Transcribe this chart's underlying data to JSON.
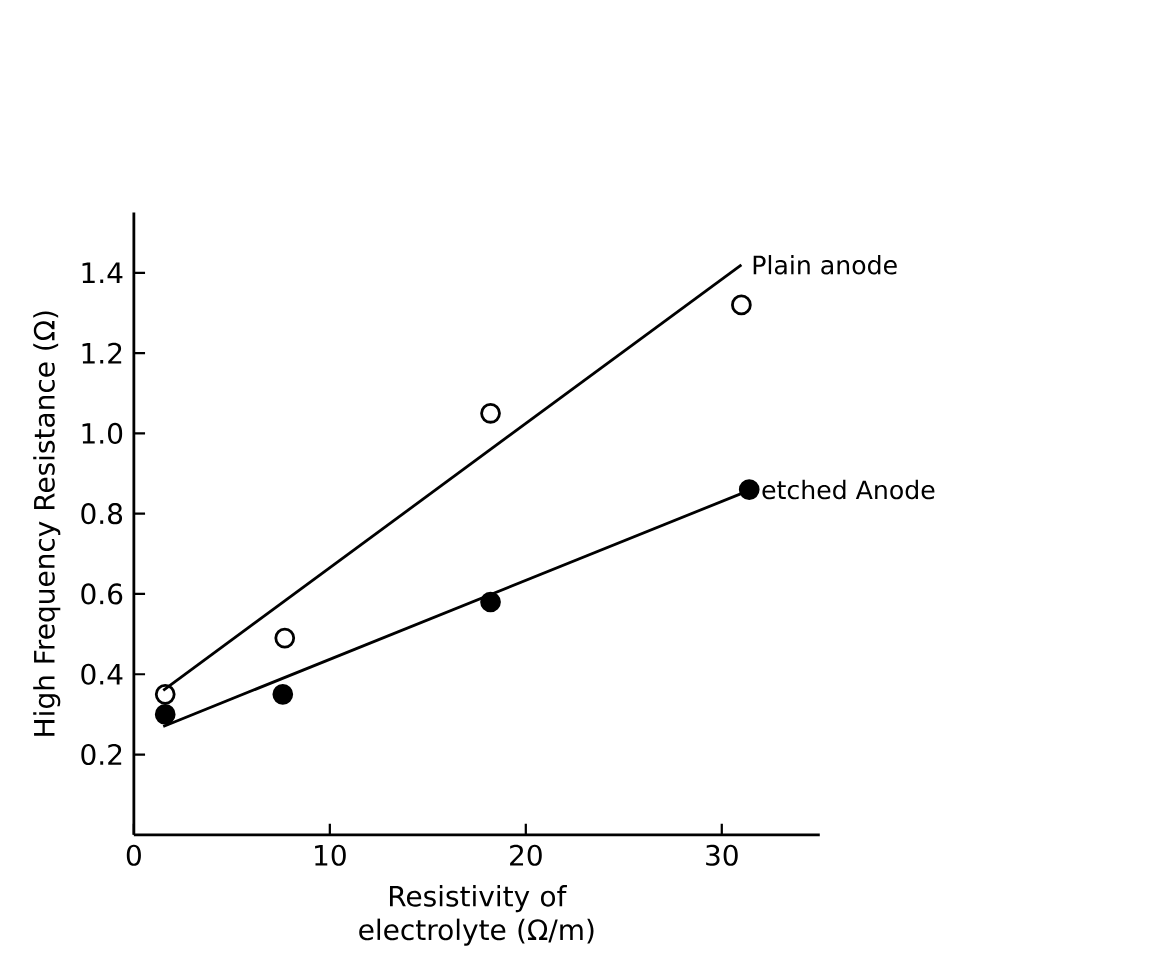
{
  "chart_data": {
    "type": "scatter",
    "xlabel": "Resistivity of electrolyte (Ω/m)",
    "ylabel": "High Frequency Resistance (Ω)",
    "xlim": [
      0,
      35
    ],
    "ylim": [
      0,
      1.55
    ],
    "xticks": [
      0,
      10,
      20,
      30
    ],
    "yticks": [
      0.2,
      0.4,
      0.6,
      0.8,
      {
        "value": 1.0,
        "label": "1.0"
      },
      1.2,
      1.4
    ],
    "grid": false,
    "legend": false,
    "marker": "circle",
    "series": [
      {
        "color": "#000000",
        "marker": "circle open",
        "x": [
          1.6,
          7.7,
          18.2,
          31.0
        ],
        "values": [
          0.35,
          0.49,
          1.05,
          1.32
        ]
      },
      {
        "color": "#000000",
        "x": [
          1.6,
          7.6,
          18.2,
          31.4
        ],
        "values": [
          0.3,
          0.35,
          0.58,
          0.86
        ]
      },
      {
        "type": "line",
        "name": "Plain anode",
        "color": "#000000",
        "marker": "none",
        "x": [
          1.5,
          31.0
        ],
        "values": [
          0.36,
          1.42
        ]
      },
      {
        "type": "line",
        "name": "etched Anode",
        "color": "#000000",
        "marker": "none",
        "x": [
          1.5,
          31.5
        ],
        "values": [
          0.27,
          0.86
        ]
      }
    ]
  }
}
